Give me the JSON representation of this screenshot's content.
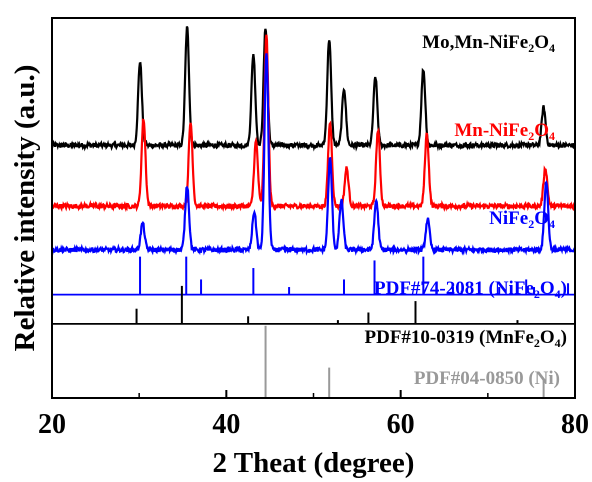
{
  "chart_data": {
    "type": "line",
    "xlabel": "2 Theat (degree)",
    "ylabel": "Relative intensity (a.u.)",
    "xlim": [
      20,
      80
    ],
    "xticks": [
      20,
      40,
      60,
      80
    ],
    "y_scale": "arbitrary units, vertically stacked traces",
    "grid": false,
    "series": [
      {
        "name": "Mo,Mn-NiFe2O4",
        "label_parts": [
          "Mo,Mn-NiFe",
          "2",
          "O",
          "4"
        ],
        "color": "#000000",
        "baseline": 0.665,
        "peaks": [
          {
            "x": 30.1,
            "h": 0.22
          },
          {
            "x": 35.5,
            "h": 0.31
          },
          {
            "x": 43.1,
            "h": 0.24
          },
          {
            "x": 44.5,
            "h": 0.31
          },
          {
            "x": 53.5,
            "h": 0.15
          },
          {
            "x": 51.8,
            "h": 0.28
          },
          {
            "x": 57.1,
            "h": 0.18
          },
          {
            "x": 62.6,
            "h": 0.2
          },
          {
            "x": 76.4,
            "h": 0.1
          }
        ]
      },
      {
        "name": "Mn-NiFe2O4",
        "label_parts": [
          "Mn-NiFe",
          "2",
          "O",
          "4"
        ],
        "color": "#ff0000",
        "baseline": 0.505,
        "peaks": [
          {
            "x": 30.5,
            "h": 0.23
          },
          {
            "x": 35.9,
            "h": 0.22
          },
          {
            "x": 43.4,
            "h": 0.17
          },
          {
            "x": 44.6,
            "h": 0.45
          },
          {
            "x": 53.8,
            "h": 0.1
          },
          {
            "x": 51.9,
            "h": 0.22
          },
          {
            "x": 57.4,
            "h": 0.2
          },
          {
            "x": 63.0,
            "h": 0.19
          },
          {
            "x": 76.6,
            "h": 0.1
          }
        ]
      },
      {
        "name": "NiFe2O4",
        "label_parts": [
          "NiFe",
          "2",
          "O",
          "4"
        ],
        "color": "#0000ff",
        "baseline": 0.39,
        "peaks": [
          {
            "x": 30.4,
            "h": 0.07
          },
          {
            "x": 35.5,
            "h": 0.17
          },
          {
            "x": 43.2,
            "h": 0.1
          },
          {
            "x": 44.6,
            "h": 0.52
          },
          {
            "x": 53.2,
            "h": 0.13
          },
          {
            "x": 51.9,
            "h": 0.24
          },
          {
            "x": 57.2,
            "h": 0.13
          },
          {
            "x": 63.1,
            "h": 0.08
          },
          {
            "x": 76.7,
            "h": 0.18
          }
        ]
      }
    ],
    "references": [
      {
        "name": "PDF#74-2081 (NiFe2O4)",
        "label_parts": [
          "PDF#74-2081 (NiFe",
          "2",
          "O",
          "4",
          ")"
        ],
        "color": "#0000ff",
        "baseline": 0.272,
        "sticks": [
          {
            "x": 30.1,
            "h": 0.1
          },
          {
            "x": 35.4,
            "h": 0.1
          },
          {
            "x": 37.1,
            "h": 0.04
          },
          {
            "x": 43.1,
            "h": 0.07
          },
          {
            "x": 47.2,
            "h": 0.02
          },
          {
            "x": 53.5,
            "h": 0.04
          },
          {
            "x": 57.0,
            "h": 0.09
          },
          {
            "x": 62.6,
            "h": 0.1
          },
          {
            "x": 66.0,
            "h": 0.02
          },
          {
            "x": 67.0,
            "h": 0.01
          },
          {
            "x": 71.3,
            "h": 0.02
          },
          {
            "x": 74.4,
            "h": 0.04
          },
          {
            "x": 75.3,
            "h": 0.02
          },
          {
            "x": 79.2,
            "h": 0.03
          }
        ]
      },
      {
        "name": "PDF#10-0319 (MnFe2O4)",
        "label_parts": [
          "PDF#10-0319 (MnFe",
          "2",
          "O",
          "4",
          ")"
        ],
        "color": "#000000",
        "baseline": 0.195,
        "sticks": [
          {
            "x": 29.7,
            "h": 0.04
          },
          {
            "x": 34.9,
            "h": 0.1
          },
          {
            "x": 42.5,
            "h": 0.02
          },
          {
            "x": 52.8,
            "h": 0.01
          },
          {
            "x": 56.3,
            "h": 0.03
          },
          {
            "x": 61.7,
            "h": 0.06
          },
          {
            "x": 73.4,
            "h": 0.01
          }
        ]
      },
      {
        "name": "PDF#04-0850 (Ni)",
        "label_parts": [
          "PDF#04-0850 (Ni)"
        ],
        "color": "#999999",
        "baseline": 0.0,
        "sticks": [
          {
            "x": 44.5,
            "h": 0.19
          },
          {
            "x": 51.8,
            "h": 0.08
          },
          {
            "x": 76.4,
            "h": 0.05
          }
        ]
      }
    ]
  }
}
